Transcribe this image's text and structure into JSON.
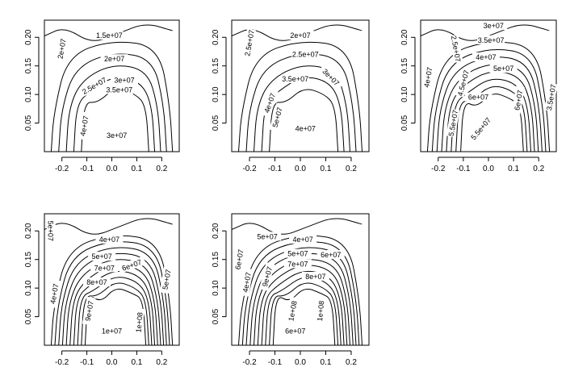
{
  "chart_data": [
    {
      "type": "contour",
      "title": "",
      "xlabel": "",
      "ylabel": "",
      "xlim": [
        -0.27,
        0.27
      ],
      "ylim": [
        0.0,
        0.23
      ],
      "x_ticks": [
        "-0.2",
        "-0.1",
        "0.0",
        "0.1",
        "0.2"
      ],
      "y_ticks": [
        "0.05",
        "0.10",
        "0.15",
        "0.20"
      ],
      "contour_labels": [
        {
          "text": "1.5e+07",
          "x": -0.01,
          "y": 0.203,
          "rot": 0
        },
        {
          "text": "2e+07",
          "x": -0.2,
          "y": 0.18,
          "rot": -80
        },
        {
          "text": "2e+07",
          "x": 0.01,
          "y": 0.162,
          "rot": 0
        },
        {
          "text": "2.5e+07",
          "x": -0.07,
          "y": 0.115,
          "rot": -30
        },
        {
          "text": "3e+07",
          "x": 0.05,
          "y": 0.125,
          "rot": 0
        },
        {
          "text": "3.5e+07",
          "x": 0.03,
          "y": 0.108,
          "rot": 0
        },
        {
          "text": "4e+07",
          "x": -0.11,
          "y": 0.045,
          "rot": -80
        },
        {
          "text": "3e+07",
          "x": 0.02,
          "y": 0.028,
          "rot": 0
        }
      ]
    },
    {
      "type": "contour",
      "title": "",
      "xlabel": "",
      "ylabel": "",
      "xlim": [
        -0.27,
        0.27
      ],
      "ylim": [
        0.0,
        0.23
      ],
      "x_ticks": [
        "-0.2",
        "-0.1",
        "0.0",
        "0.1",
        "0.2"
      ],
      "y_ticks": [
        "0.05",
        "0.10",
        "0.15",
        "0.20"
      ],
      "contour_labels": [
        {
          "text": "2e+07",
          "x": 0.0,
          "y": 0.203,
          "rot": 0
        },
        {
          "text": "2.5e+07",
          "x": -0.2,
          "y": 0.19,
          "rot": -80
        },
        {
          "text": "2.5e+07",
          "x": 0.02,
          "y": 0.17,
          "rot": 0
        },
        {
          "text": "3.5e+07",
          "x": -0.02,
          "y": 0.127,
          "rot": 0
        },
        {
          "text": "3e+07",
          "x": 0.12,
          "y": 0.13,
          "rot": 45
        },
        {
          "text": "4e+07",
          "x": -0.12,
          "y": 0.085,
          "rot": -70
        },
        {
          "text": "5e+07",
          "x": -0.09,
          "y": 0.06,
          "rot": -75
        },
        {
          "text": "4e+07",
          "x": 0.02,
          "y": 0.04,
          "rot": 0
        }
      ]
    },
    {
      "type": "contour",
      "title": "",
      "xlabel": "",
      "ylabel": "",
      "xlim": [
        -0.27,
        0.27
      ],
      "ylim": [
        0.0,
        0.23
      ],
      "x_ticks": [
        "-0.2",
        "-0.1",
        "0.0",
        "0.1",
        "0.2"
      ],
      "y_ticks": [
        "0.05",
        "0.10",
        "0.15",
        "0.20"
      ],
      "contour_labels": [
        {
          "text": "3e+07",
          "x": 0.02,
          "y": 0.22,
          "rot": 0
        },
        {
          "text": "3.5e+07",
          "x": 0.01,
          "y": 0.195,
          "rot": 0
        },
        {
          "text": "2.5e+07",
          "x": -0.13,
          "y": 0.18,
          "rot": 80
        },
        {
          "text": "4e+07",
          "x": -0.01,
          "y": 0.165,
          "rot": 0
        },
        {
          "text": "4e+07",
          "x": -0.24,
          "y": 0.13,
          "rot": -80
        },
        {
          "text": "5e+07",
          "x": 0.06,
          "y": 0.145,
          "rot": 0
        },
        {
          "text": "4.5e+07",
          "x": -0.1,
          "y": 0.12,
          "rot": -75
        },
        {
          "text": "6e+07",
          "x": -0.04,
          "y": 0.095,
          "rot": 0
        },
        {
          "text": "6e+07",
          "x": 0.12,
          "y": 0.09,
          "rot": -80
        },
        {
          "text": "3.5e+07",
          "x": 0.25,
          "y": 0.095,
          "rot": -80
        },
        {
          "text": "5.5e+07",
          "x": -0.14,
          "y": 0.05,
          "rot": -80
        },
        {
          "text": "5.5e+07",
          "x": -0.03,
          "y": 0.04,
          "rot": -50
        }
      ]
    },
    {
      "type": "contour",
      "title": "",
      "xlabel": "",
      "ylabel": "",
      "xlim": [
        -0.27,
        0.27
      ],
      "ylim": [
        0.0,
        0.23
      ],
      "x_ticks": [
        "-0.2",
        "-0.1",
        "0.0",
        "0.1",
        "0.2"
      ],
      "y_ticks": [
        "0.05",
        "0.10",
        "0.15",
        "0.20"
      ],
      "contour_labels": [
        {
          "text": "5e+07",
          "x": -0.245,
          "y": 0.2,
          "rot": 90
        },
        {
          "text": "4e+07",
          "x": -0.01,
          "y": 0.185,
          "rot": 0
        },
        {
          "text": "5e+07",
          "x": -0.04,
          "y": 0.155,
          "rot": 0
        },
        {
          "text": "6e+07",
          "x": 0.08,
          "y": 0.14,
          "rot": -20
        },
        {
          "text": "7e+07",
          "x": -0.03,
          "y": 0.135,
          "rot": 0
        },
        {
          "text": "5e+07",
          "x": 0.22,
          "y": 0.115,
          "rot": -80
        },
        {
          "text": "8e+07",
          "x": -0.06,
          "y": 0.11,
          "rot": 0
        },
        {
          "text": "4e+07",
          "x": -0.23,
          "y": 0.09,
          "rot": -80
        },
        {
          "text": "9e+07",
          "x": -0.09,
          "y": 0.06,
          "rot": -80
        },
        {
          "text": "1e+08",
          "x": 0.11,
          "y": 0.04,
          "rot": -85
        },
        {
          "text": "1e+07",
          "x": 0.0,
          "y": 0.025,
          "rot": 0
        }
      ]
    },
    {
      "type": "contour",
      "title": "",
      "xlabel": "",
      "ylabel": "",
      "xlim": [
        -0.27,
        0.27
      ],
      "ylim": [
        0.0,
        0.23
      ],
      "x_ticks": [
        "-0.2",
        "-0.1",
        "0.0",
        "0.1",
        "0.2"
      ],
      "y_ticks": [
        "0.05",
        "0.10",
        "0.15",
        "0.20"
      ],
      "contour_labels": [
        {
          "text": "5e+07",
          "x": -0.13,
          "y": 0.19,
          "rot": 0
        },
        {
          "text": "4e+07",
          "x": 0.01,
          "y": 0.185,
          "rot": 0
        },
        {
          "text": "5e+07",
          "x": -0.01,
          "y": 0.16,
          "rot": 0
        },
        {
          "text": "6e+07",
          "x": 0.12,
          "y": 0.158,
          "rot": 0
        },
        {
          "text": "6e+07",
          "x": -0.24,
          "y": 0.15,
          "rot": -80
        },
        {
          "text": "7e+07",
          "x": -0.01,
          "y": 0.142,
          "rot": 0
        },
        {
          "text": "4e+07",
          "x": -0.21,
          "y": 0.11,
          "rot": -80
        },
        {
          "text": "9e+07",
          "x": -0.13,
          "y": 0.12,
          "rot": -75
        },
        {
          "text": "8e+07",
          "x": 0.06,
          "y": 0.12,
          "rot": 0
        },
        {
          "text": "1e+08",
          "x": 0.08,
          "y": 0.06,
          "rot": -85
        },
        {
          "text": "1e+08",
          "x": -0.03,
          "y": 0.06,
          "rot": -80
        },
        {
          "text": "6e+07",
          "x": -0.02,
          "y": 0.025,
          "rot": 0
        }
      ]
    }
  ]
}
